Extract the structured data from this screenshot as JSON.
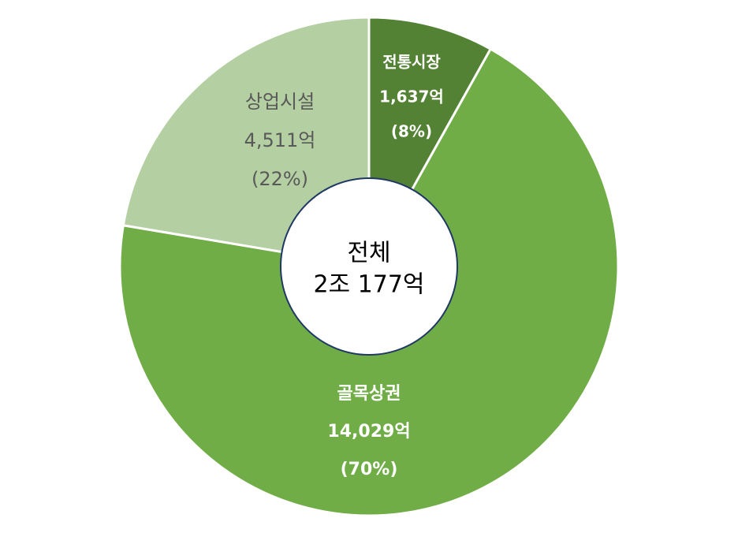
{
  "chart_data": {
    "type": "donut",
    "categories": [
      "전통시장",
      "골목상권",
      "상업시설"
    ],
    "values": [
      1637,
      14029,
      4511
    ],
    "value_labels": [
      "1,637억",
      "14,029억",
      "4,511억"
    ],
    "percentages": [
      8,
      70,
      22
    ],
    "percentage_labels": [
      "(8%)",
      "(70%)",
      "(22%)"
    ],
    "colors": [
      "#548235",
      "#70ad47",
      "#b4cfa2"
    ],
    "center_label": [
      "전체",
      "2조 177억"
    ]
  }
}
